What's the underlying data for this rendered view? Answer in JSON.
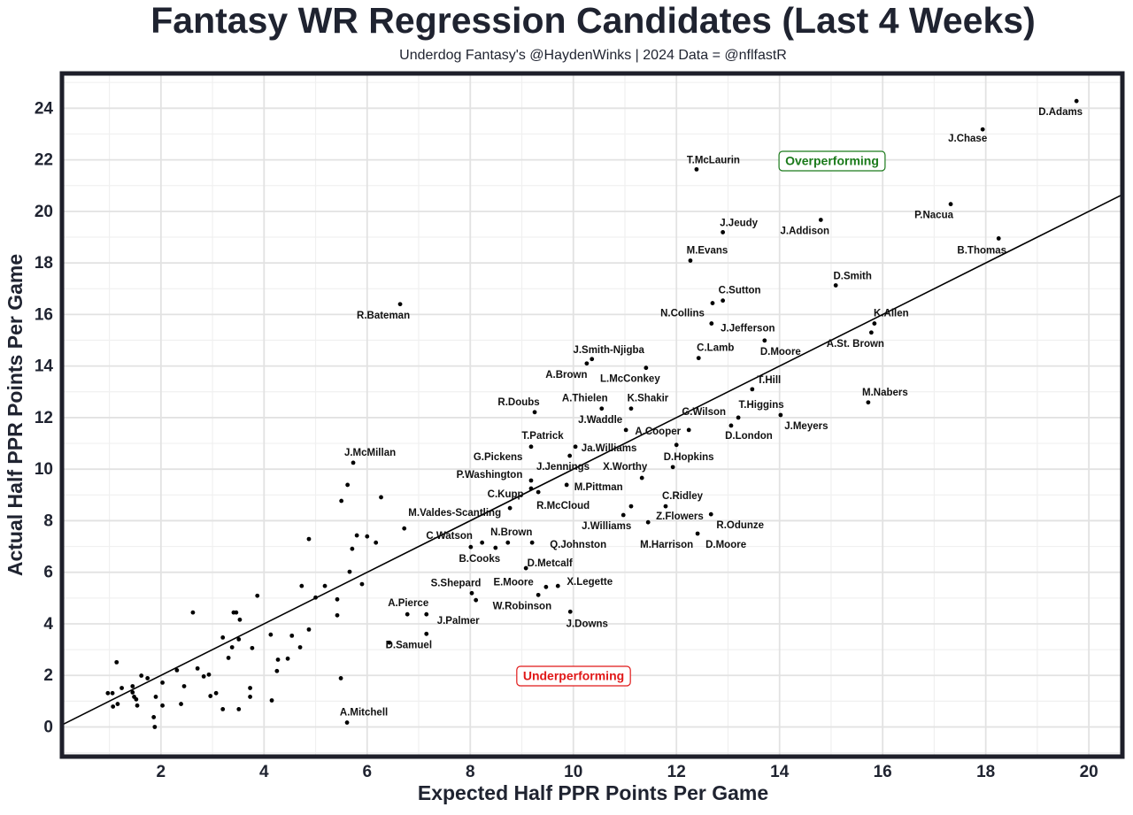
{
  "chart_data": {
    "type": "scatter",
    "title": "Fantasy WR Regression Candidates (Last 4 Weeks)",
    "subtitle": "Underdog Fantasy's @HaydenWinks | 2024 Data = @nflfastR",
    "x_label": "Expected Half PPR Points Per Game",
    "y_label": "Actual Half PPR Points Per Game",
    "xlim": [
      0.08,
      20.65
    ],
    "ylim": [
      -1.15,
      25.35
    ],
    "xticks": [
      2,
      4,
      6,
      8,
      10,
      12,
      14,
      16,
      18,
      20
    ],
    "yticks": [
      0,
      2,
      4,
      6,
      8,
      10,
      12,
      14,
      16,
      18,
      20,
      22,
      24
    ],
    "grid": true,
    "identity_line": true,
    "annotations": [
      {
        "text": "Overperforming",
        "color": "#1a7a1a"
      },
      {
        "text": "Underperforming",
        "color": "#e01818"
      }
    ],
    "series": [
      {
        "color": "#000000",
        "labels": [
          "D.Adams",
          "J.Chase",
          "T.McLaurin",
          "P.Nacua",
          "J.Addison",
          "J.Jeudy",
          "B.Thomas",
          "M.Evans",
          "D.Smith",
          "C.Sutton",
          "N.Collins",
          "R.Bateman",
          "K.Allen",
          "J.Jefferson",
          "A.St. Brown",
          "D.Moore",
          "C.Lamb",
          "J.Smith-Njigba",
          "A.Brown",
          "L.McConkey",
          "T.Hill",
          "M.Nabers",
          "K.Shakir",
          "A.Thielen",
          "R.Doubs",
          "J.Meyers",
          "T.Higgins",
          "D.London",
          "J.Waddle",
          "G.Wilson",
          "A.Cooper",
          "D.Hopkins",
          "T.Patrick",
          "Ja.Williams",
          "G.Pickens",
          "J.McMillan",
          "J.Jennings",
          "P.Washington",
          "X.Worthy",
          "M.Pittman",
          "C.Kupp",
          "C.Ridley",
          "R.McCloud",
          "Z.Flowers",
          "R.Odunze",
          "J.Williams",
          "M.Harrison",
          "D.Moore",
          "M.Valdes-Scantling",
          "C.Watson",
          "N.Brown",
          "Q.Johnston",
          "B.Cooks",
          "D.Metcalf",
          "E.Moore",
          "W.Robinson",
          "X.Legette",
          "S.Shepard",
          "J.Palmer",
          "A.Pierce",
          "J.Downs",
          "D.Samuel",
          "A.Mitchell",
          null,
          null,
          null,
          null,
          null,
          null,
          null,
          null,
          null,
          null,
          null,
          null,
          null,
          null,
          null,
          null,
          null,
          null,
          null,
          null,
          null,
          null,
          null,
          null,
          null,
          null,
          null,
          null,
          null,
          null,
          null,
          null,
          null,
          null,
          null,
          null,
          null,
          null,
          null,
          null,
          null,
          null,
          null,
          null,
          null,
          null,
          null,
          null,
          null,
          null,
          null,
          null,
          null,
          null,
          null,
          null,
          null,
          null,
          null,
          null,
          null,
          null,
          null,
          null,
          null,
          null,
          null
        ],
        "x": [
          19.76,
          17.94,
          12.39,
          17.32,
          14.8,
          12.9,
          18.25,
          12.27,
          15.09,
          12.9,
          12.7,
          6.64,
          15.84,
          12.68,
          15.78,
          13.71,
          12.43,
          10.36,
          10.26,
          11.41,
          13.47,
          15.72,
          11.12,
          10.55,
          9.25,
          14.02,
          13.2,
          13.06,
          11.02,
          12.24,
          12.0,
          11.93,
          9.18,
          10.04,
          9.93,
          5.73,
          9.18,
          9.18,
          11.33,
          9.87,
          8.77,
          11.79,
          9.32,
          11.12,
          12.67,
          10.97,
          11.45,
          12.41,
          6.72,
          8.23,
          8.73,
          9.2,
          8.49,
          9.08,
          9.32,
          9.47,
          9.7,
          8.03,
          8.11,
          6.78,
          9.94,
          6.43,
          5.61,
          1.14,
          0.97,
          1.06,
          1.07,
          1.16,
          1.24,
          1.45,
          1.45,
          1.48,
          1.52,
          1.54,
          1.62,
          1.74,
          1.86,
          1.88,
          1.9,
          2.03,
          2.03,
          2.31,
          2.39,
          2.45,
          2.62,
          2.71,
          2.83,
          2.93,
          2.96,
          3.07,
          3.2,
          3.2,
          3.31,
          3.38,
          3.41,
          3.46,
          3.51,
          3.53,
          3.51,
          3.73,
          3.73,
          3.77,
          3.87,
          4.13,
          4.15,
          4.25,
          4.27,
          4.46,
          4.54,
          4.7,
          4.73,
          4.87,
          4.87,
          5.0,
          5.18,
          5.42,
          5.42,
          5.49,
          5.5,
          5.62,
          5.66,
          5.71,
          5.8,
          5.9,
          6.0,
          6.17,
          6.27,
          7.15,
          7.15,
          8.01
        ],
        "values": [
          24.28,
          23.18,
          21.63,
          20.28,
          19.67,
          19.19,
          18.95,
          18.09,
          17.13,
          16.54,
          16.44,
          16.4,
          15.65,
          15.65,
          15.3,
          14.99,
          14.31,
          14.27,
          14.1,
          13.93,
          13.1,
          12.59,
          12.35,
          12.35,
          12.21,
          12.1,
          12.0,
          11.69,
          11.52,
          11.52,
          10.94,
          10.08,
          10.87,
          10.87,
          10.52,
          10.25,
          9.25,
          9.56,
          9.66,
          9.39,
          8.49,
          8.56,
          9.11,
          8.56,
          8.25,
          8.22,
          7.94,
          7.5,
          7.7,
          7.15,
          7.15,
          7.15,
          6.95,
          6.16,
          5.12,
          5.43,
          5.47,
          5.19,
          4.92,
          4.37,
          4.47,
          3.27,
          0.17,
          2.51,
          1.31,
          1.31,
          0.79,
          0.89,
          1.51,
          1.58,
          1.34,
          1.17,
          1.07,
          0.83,
          1.99,
          1.89,
          0.38,
          0.0,
          1.17,
          1.72,
          0.83,
          2.2,
          0.89,
          1.58,
          4.44,
          2.27,
          1.96,
          2.03,
          1.2,
          1.31,
          3.47,
          0.69,
          2.68,
          3.09,
          4.44,
          4.44,
          3.4,
          4.16,
          0.69,
          1.51,
          1.17,
          3.06,
          5.09,
          3.58,
          1.03,
          2.17,
          2.61,
          2.65,
          3.54,
          3.09,
          5.47,
          3.78,
          7.29,
          5.02,
          5.47,
          4.95,
          4.33,
          1.89,
          8.77,
          9.39,
          6.02,
          6.91,
          7.43,
          5.54,
          7.39,
          7.15,
          8.91,
          4.37,
          3.61,
          6.98
        ]
      }
    ]
  }
}
